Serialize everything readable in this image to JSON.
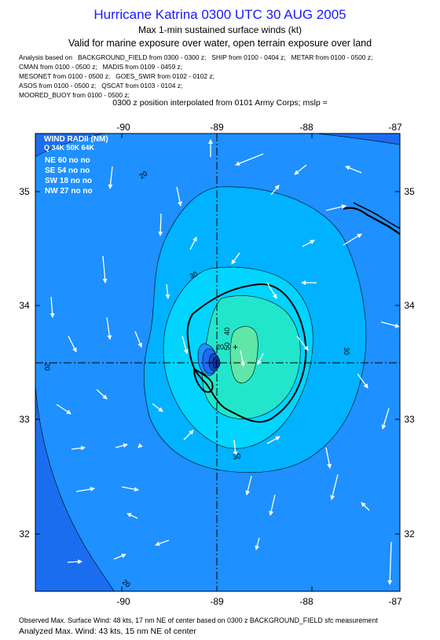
{
  "header": {
    "title": "Hurricane Katrina 0300 UTC 30 AUG 2005",
    "subtitle": "Max 1-min sustained surface winds (kt)",
    "valid_line": "Valid for marine exposure over water, open terrain exposure over land",
    "analysis_lines": [
      "Analysis based on   BACKGROUND_FIELD from 0300 - 0300 z;   SHIP from 0100 - 0404 z;   METAR from 0100 - 0500 z;",
      "CMAN from 0100 - 0500 z;   MADIS from 0109 - 0459 z;",
      "MESONET from 0100 - 0500 z;   GOES_SWIR from 0102 - 0102 z;",
      "ASOS from 0100 - 0500 z;   QSCAT from 0103 - 0104 z;",
      "MOORED_BUOY from 0100 - 0500 z;"
    ],
    "position_line": "0300 z position interpolated from 0101 Army Corps; mslp ="
  },
  "map": {
    "lon_labels": [
      "-90",
      "-89",
      "-88",
      "-87"
    ],
    "lat_labels": [
      "35",
      "34",
      "33",
      "32"
    ],
    "contour_labels": [
      "20",
      "30",
      "30",
      "30",
      "20",
      "20",
      "20",
      "50",
      "40"
    ],
    "wind_radii": {
      "title": "WIND RADII (NM)",
      "columns": "Q 34K 50K 64K",
      "rows": [
        "NE 60 no no",
        "SE 54 no no",
        "SW 18 no no",
        "NW 27 no no"
      ]
    },
    "colors": {
      "background": "#1b6df0",
      "band20": "#1e90ff",
      "band30": "#00b2ff",
      "band40": "#00d4ff",
      "band50": "#22e6cc",
      "band60": "#5fe6a8"
    }
  },
  "footer": {
    "observed": "Observed Max. Surface Wind: 48 kts, 17 nm NE of center based on 0300 z BACKGROUND_FIELD sfc measurement",
    "analyzed": "Analyzed Max. Wind: 43 kts, 15 nm NE of center"
  }
}
